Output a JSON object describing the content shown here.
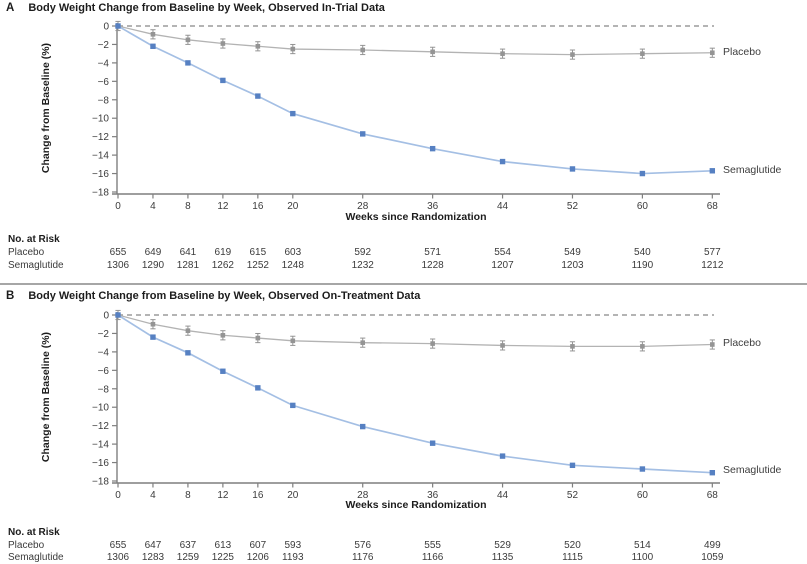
{
  "colors": {
    "semaglutide_marker": "#5680c2",
    "semaglutide_line": "#a4bfe4",
    "placebo_marker": "#949494",
    "placebo_line": "#b3b3b3",
    "reference_dash": "#9b9b9b",
    "axis": "#7f7f7f",
    "tick_text": "#3c3c3c"
  },
  "chart_data": [
    {
      "type": "line",
      "panel_label": "A",
      "title": "Body Weight Change from Baseline by Week, Observed In-Trial Data",
      "xlabel": "Weeks since Randomization",
      "ylabel": "Change from Baseline (%)",
      "x": [
        0,
        4,
        8,
        12,
        16,
        20,
        28,
        36,
        44,
        52,
        60,
        68
      ],
      "y_ticks": [
        0,
        -2,
        -4,
        -6,
        -8,
        -10,
        -12,
        -14,
        -16,
        -18
      ],
      "xlim": [
        0,
        68
      ],
      "ylim": [
        -18,
        0
      ],
      "zero_reference_line": true,
      "legend_position": "right-of-line-end",
      "series": [
        {
          "name": "Placebo",
          "error_bar": 0.28,
          "values": [
            0,
            -0.9,
            -1.5,
            -1.9,
            -2.2,
            -2.5,
            -2.6,
            -2.8,
            -3.0,
            -3.1,
            -3.0,
            -2.9
          ]
        },
        {
          "name": "Semaglutide",
          "error_bar": 0,
          "values": [
            0,
            -2.2,
            -4.0,
            -5.9,
            -7.6,
            -9.5,
            -11.7,
            -13.3,
            -14.7,
            -15.5,
            -16.0,
            -15.7
          ]
        }
      ],
      "no_at_risk": {
        "header": "No. at Risk",
        "rows": [
          {
            "label": "Placebo",
            "values": [
              655,
              649,
              641,
              619,
              615,
              603,
              592,
              571,
              554,
              549,
              540,
              577
            ]
          },
          {
            "label": "Semaglutide",
            "values": [
              1306,
              1290,
              1281,
              1262,
              1252,
              1248,
              1232,
              1228,
              1207,
              1203,
              1190,
              1212
            ]
          }
        ]
      }
    },
    {
      "type": "line",
      "panel_label": "B",
      "title": "Body Weight Change from Baseline by Week, Observed On-Treatment Data",
      "xlabel": "Weeks since Randomization",
      "ylabel": "Change from Baseline (%)",
      "x": [
        0,
        4,
        8,
        12,
        16,
        20,
        28,
        36,
        44,
        52,
        60,
        68
      ],
      "y_ticks": [
        0,
        -2,
        -4,
        -6,
        -8,
        -10,
        -12,
        -14,
        -16,
        -18
      ],
      "xlim": [
        0,
        68
      ],
      "ylim": [
        -18,
        0
      ],
      "zero_reference_line": true,
      "legend_position": "right-of-line-end",
      "series": [
        {
          "name": "Placebo",
          "error_bar": 0.28,
          "values": [
            0,
            -1.0,
            -1.7,
            -2.2,
            -2.5,
            -2.8,
            -3.0,
            -3.1,
            -3.3,
            -3.4,
            -3.4,
            -3.2
          ]
        },
        {
          "name": "Semaglutide",
          "error_bar": 0,
          "values": [
            0,
            -2.4,
            -4.1,
            -6.1,
            -7.9,
            -9.8,
            -12.1,
            -13.9,
            -15.3,
            -16.3,
            -16.7,
            -17.1
          ]
        }
      ],
      "no_at_risk": {
        "header": "No. at Risk",
        "rows": [
          {
            "label": "Placebo",
            "values": [
              655,
              647,
              637,
              613,
              607,
              593,
              576,
              555,
              529,
              520,
              514,
              499
            ]
          },
          {
            "label": "Semaglutide",
            "values": [
              1306,
              1283,
              1259,
              1225,
              1206,
              1193,
              1176,
              1166,
              1135,
              1115,
              1100,
              1059
            ]
          }
        ]
      }
    }
  ]
}
